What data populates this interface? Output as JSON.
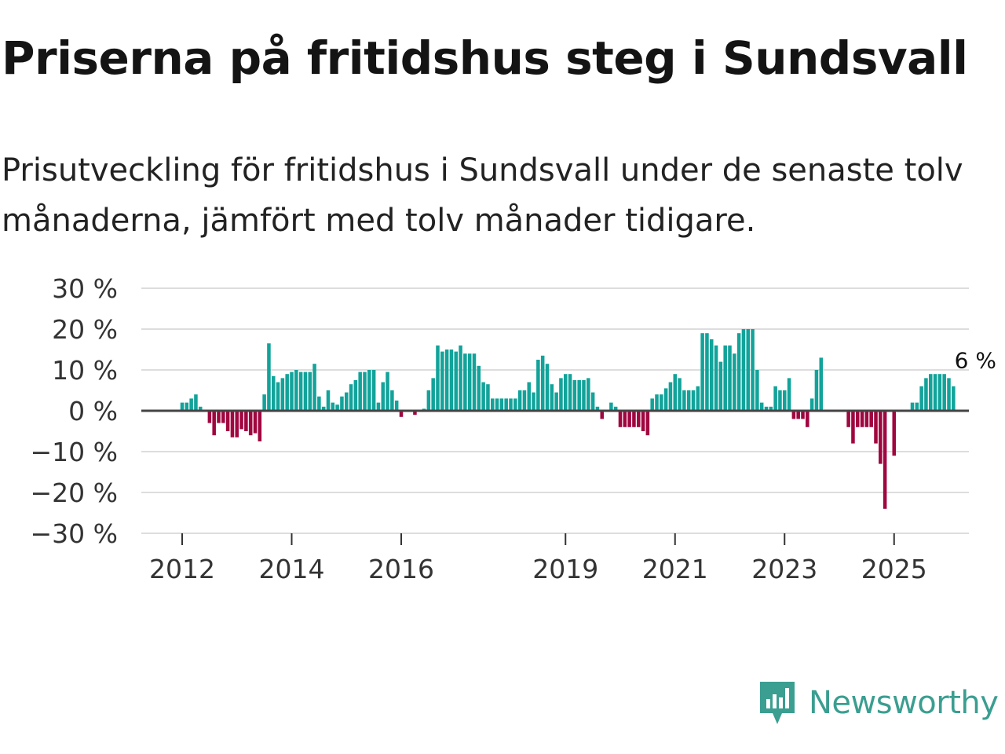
{
  "header": {
    "title": "Priserna på fritidshus steg i Sundsvall",
    "subtitle": "Prisutveckling för fritidshus i Sundsvall under de senaste tolv månaderna, jämfört med tolv månader tidigare."
  },
  "chart_data": {
    "type": "bar",
    "title": "Priserna på fritidshus steg i Sundsvall",
    "subtitle": "Prisutveckling för fritidshus i Sundsvall under de senaste tolv månaderna, jämfört med tolv månader tidigare.",
    "xlabel": "",
    "ylabel": "",
    "ylim": [
      -30,
      30
    ],
    "y_ticks": [
      30,
      20,
      10,
      0,
      -10,
      -20,
      -30
    ],
    "y_tick_labels": [
      "30 %",
      "20 %",
      "10 %",
      "0 %",
      "−10 %",
      "−20 %",
      "−30 %"
    ],
    "x_ticks": [
      2012,
      2014,
      2016,
      2019,
      2021,
      2023,
      2025
    ],
    "x_tick_labels": [
      "2012",
      "2014",
      "2016",
      "2019",
      "2021",
      "2023",
      "2025"
    ],
    "start": "2012-01",
    "frequency": "monthly",
    "colors": {
      "positive": "#12a39a",
      "negative": "#a0063f",
      "grid": "#dddddd",
      "zero_line": "#444444"
    },
    "last_value_label": "6 %",
    "values": [
      2.0,
      2.0,
      3.0,
      4.0,
      1.0,
      0,
      -3.0,
      -6.0,
      -3.0,
      -3.0,
      -5.0,
      -6.5,
      -6.5,
      -4.5,
      -5.0,
      -6.0,
      -5.5,
      -7.5,
      4.0,
      16.5,
      8.5,
      7.0,
      8.0,
      9.0,
      9.5,
      10.0,
      9.5,
      9.5,
      9.5,
      11.5,
      3.5,
      1.0,
      5.0,
      2.0,
      1.5,
      3.5,
      4.5,
      6.5,
      7.5,
      9.5,
      9.5,
      10.0,
      10.0,
      2.0,
      7.0,
      9.5,
      5.0,
      2.5,
      -1.5,
      0,
      0,
      -1.0,
      0,
      0.5,
      5.0,
      8.0,
      16.0,
      14.5,
      15.0,
      15.0,
      14.5,
      16.0,
      14.0,
      14.0,
      14.0,
      11.0,
      7.0,
      6.5,
      3.0,
      3.0,
      3.0,
      3.0,
      3.0,
      3.0,
      5.0,
      5.0,
      7.0,
      4.5,
      12.5,
      13.5,
      11.5,
      6.5,
      4.5,
      8.0,
      9.0,
      9.0,
      7.5,
      7.5,
      7.5,
      8.0,
      4.5,
      1.0,
      -2.0,
      0,
      2.0,
      1.0,
      -4.0,
      -4.0,
      -4.0,
      -4.0,
      -4.0,
      -5.0,
      -6.0,
      3.0,
      4.0,
      4.0,
      5.5,
      7.0,
      9.0,
      8.0,
      5.0,
      5.0,
      5.0,
      6.0,
      19.0,
      19.0,
      17.5,
      16.0,
      12.0,
      16.0,
      16.0,
      14.0,
      19.0,
      20.0,
      20.0,
      20.0,
      10.0,
      2.0,
      1.0,
      1.0,
      6.0,
      5.0,
      5.0,
      8.0,
      -2.0,
      -2.0,
      -2.0,
      -4.0,
      3.0,
      10.0,
      13.0,
      0,
      0,
      0,
      0,
      0,
      -4.0,
      -8.0,
      -4.0,
      -4.0,
      -4.0,
      -4.0,
      -8.0,
      -13.0,
      -24.0,
      0,
      -11.0,
      0,
      0,
      0,
      2.0,
      2.0,
      6.0,
      8.0,
      9.0,
      9.0,
      9.0,
      9.0,
      8.0,
      6.0
    ]
  },
  "branding": {
    "logo_text": "Newsworthy",
    "logo_color": "#3a9e90"
  }
}
